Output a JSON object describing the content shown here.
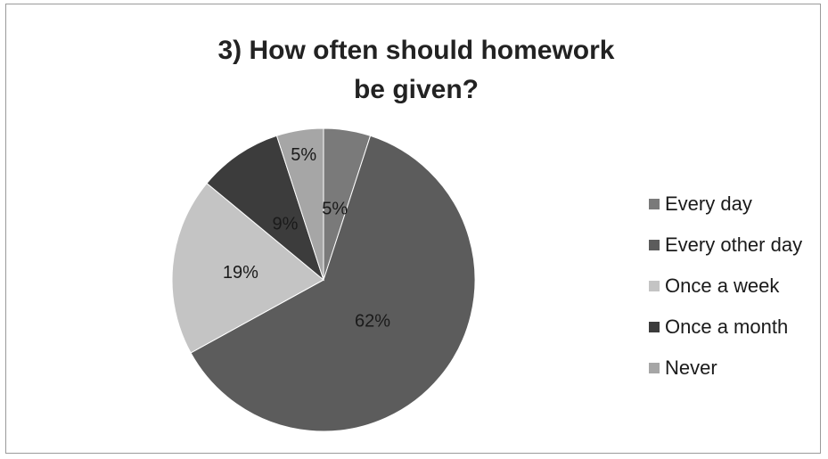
{
  "chart_data": {
    "type": "pie",
    "title_line1": "3) How often should homework",
    "title_line2": "be given?",
    "categories": [
      "Every day",
      "Every other day",
      "Once a week",
      "Once a month",
      "Never"
    ],
    "values": [
      5,
      62,
      19,
      9,
      5
    ],
    "labels": [
      "5%",
      "62%",
      "19%",
      "9%",
      "5%"
    ],
    "colors": [
      "#7a7a7a",
      "#5c5c5c",
      "#c4c4c4",
      "#3c3c3c",
      "#a6a6a6"
    ],
    "legend_position": "right"
  }
}
